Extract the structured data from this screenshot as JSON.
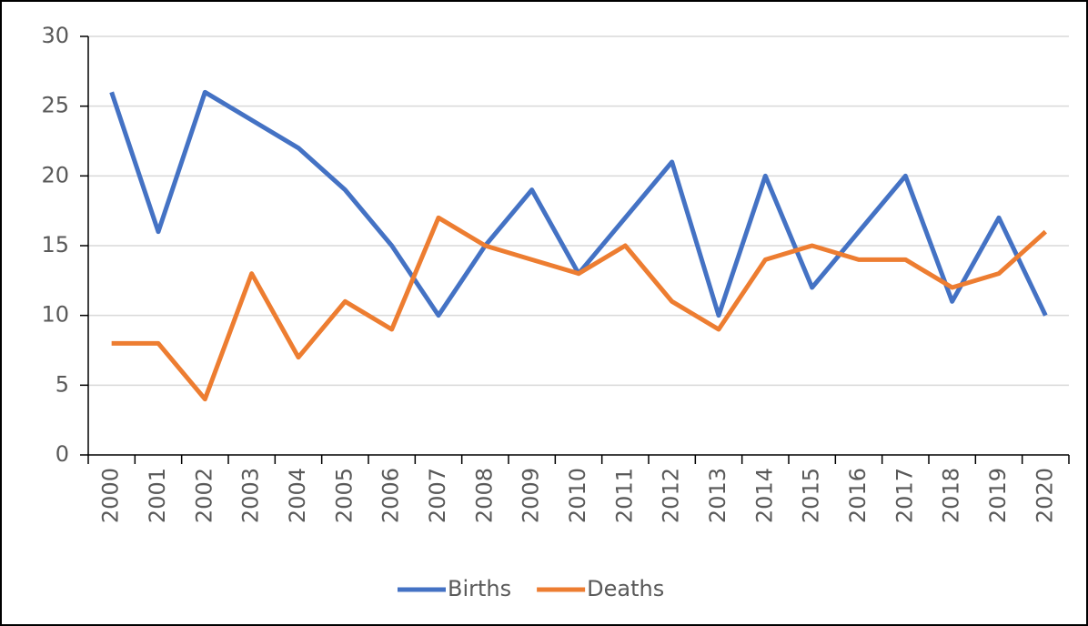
{
  "chart_data": {
    "type": "line",
    "categories": [
      "2000",
      "2001",
      "2002",
      "2003",
      "2004",
      "2005",
      "2006",
      "2007",
      "2008",
      "2009",
      "2010",
      "2011",
      "2012",
      "2013",
      "2014",
      "2015",
      "2016",
      "2017",
      "2018",
      "2019",
      "2020"
    ],
    "series": [
      {
        "name": "Births",
        "color": "#4472c4",
        "values": [
          26,
          16,
          26,
          24,
          22,
          19,
          15,
          10,
          15,
          19,
          13,
          17,
          21,
          10,
          20,
          12,
          16,
          20,
          11,
          17,
          10
        ]
      },
      {
        "name": "Deaths",
        "color": "#ed7d31",
        "values": [
          8,
          8,
          4,
          13,
          7,
          11,
          9,
          17,
          15,
          14,
          13,
          15,
          11,
          9,
          14,
          15,
          14,
          14,
          12,
          13,
          16
        ]
      }
    ],
    "ylim": [
      0,
      30
    ],
    "yticks": [
      0,
      5,
      10,
      15,
      20,
      25,
      30
    ],
    "grid": true,
    "legend": "bottom"
  }
}
